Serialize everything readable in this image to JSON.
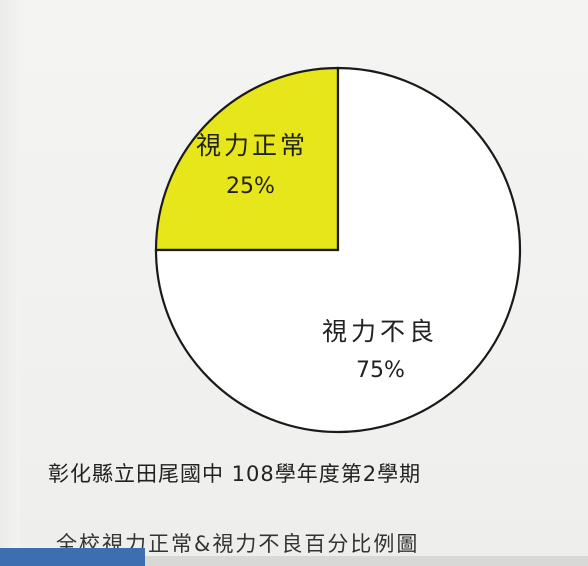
{
  "chart_data": {
    "type": "pie",
    "slices": [
      {
        "label": "視力正常",
        "value": 25,
        "value_label": "25%",
        "color": "#e6e61a"
      },
      {
        "label": "視力不良",
        "value": 75,
        "value_label": "75%",
        "color": "#ffffff"
      }
    ],
    "caption_line1": "彰化縣立田尾國中 108學年度第2學期",
    "caption_line2": "全校視力正常&視力不良百分比例圖"
  }
}
